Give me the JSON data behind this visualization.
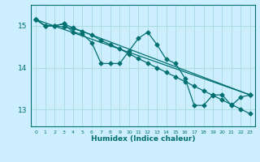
{
  "xlabel": "Humidex (Indice chaleur)",
  "bg_color": "#cceeff",
  "line_color": "#007070",
  "grid_color": "#aadddd",
  "xlim": [
    -0.5,
    23.5
  ],
  "ylim": [
    12.6,
    15.5
  ],
  "yticks": [
    13,
    14,
    15
  ],
  "xticks": [
    0,
    1,
    2,
    3,
    4,
    5,
    6,
    7,
    8,
    9,
    10,
    11,
    12,
    13,
    14,
    15,
    16,
    17,
    18,
    19,
    20,
    21,
    22,
    23
  ],
  "series": [
    {
      "x": [
        0,
        1,
        2,
        3,
        4,
        5,
        6,
        7,
        8,
        9,
        10,
        11,
        12,
        13,
        14,
        15,
        16,
        17,
        18,
        19,
        20,
        21,
        22,
        23
      ],
      "y": [
        15.15,
        15.0,
        15.0,
        15.05,
        14.85,
        14.8,
        14.6,
        14.1,
        14.1,
        14.1,
        14.4,
        14.7,
        14.85,
        14.55,
        14.2,
        14.1,
        13.75,
        13.1,
        13.1,
        13.35,
        13.35,
        13.1,
        13.3,
        13.35
      ]
    },
    {
      "x": [
        0,
        1,
        2,
        3,
        4,
        23
      ],
      "y": [
        15.15,
        15.0,
        15.0,
        15.05,
        14.95,
        13.35
      ]
    },
    {
      "x": [
        0,
        23
      ],
      "y": [
        15.15,
        13.35
      ]
    },
    {
      "x": [
        0,
        1,
        2,
        3,
        4,
        5,
        6,
        7,
        8,
        9,
        10,
        11,
        12,
        13,
        14,
        15,
        16,
        17,
        18,
        19,
        20,
        21,
        22,
        23
      ],
      "y": [
        15.15,
        15.0,
        15.0,
        14.97,
        14.93,
        14.87,
        14.78,
        14.65,
        14.55,
        14.45,
        14.33,
        14.22,
        14.11,
        14.0,
        13.89,
        13.78,
        13.67,
        13.56,
        13.45,
        13.34,
        13.23,
        13.12,
        13.01,
        12.9
      ]
    }
  ]
}
